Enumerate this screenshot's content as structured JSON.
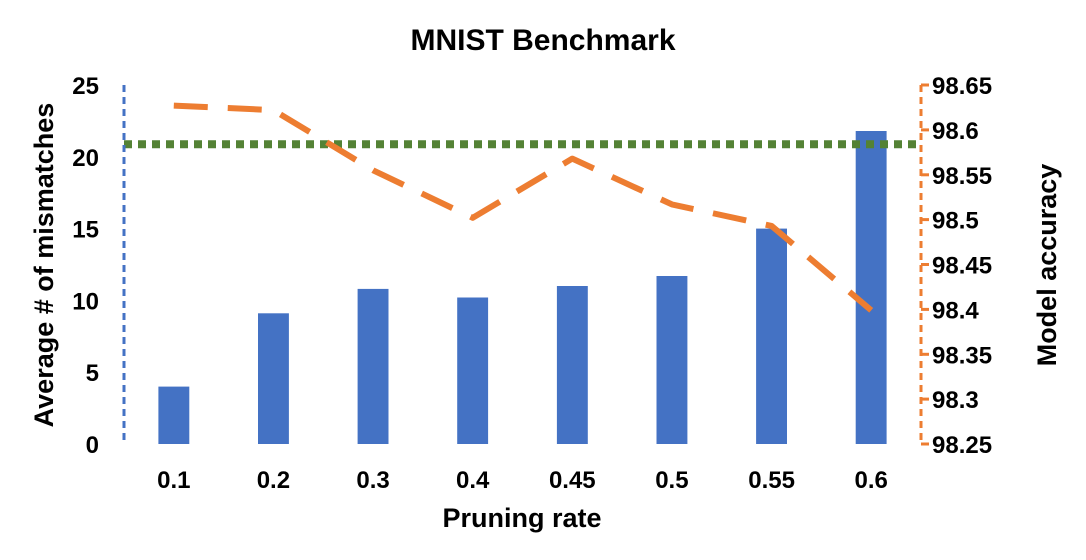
{
  "chart_data": {
    "type": "bar",
    "title": "MNIST Benchmark",
    "xlabel": "Pruning rate",
    "ylabel": "Average # of mismatches",
    "y2label": "Model accuracy",
    "categories": [
      "0.1",
      "0.2",
      "0.3",
      "0.4",
      "0.45",
      "0.5",
      "0.55",
      "0.6"
    ],
    "ylim": [
      0,
      25
    ],
    "yticks": [
      0,
      5,
      10,
      15,
      20,
      25
    ],
    "y2lim": [
      98.25,
      98.65
    ],
    "y2ticks": [
      "98.25",
      "98.3",
      "98.35",
      "98.4",
      "98.45",
      "98.5",
      "98.55",
      "98.6",
      "98.65"
    ],
    "grid": false,
    "legend": "none",
    "series": [
      {
        "type": "bar",
        "axis": "left",
        "color": "#4472C4",
        "values": [
          4.0,
          9.1,
          10.8,
          10.2,
          11.0,
          11.7,
          15.0,
          21.8
        ]
      },
      {
        "type": "line",
        "axis": "right",
        "style": "dashed",
        "color": "#ED7D31",
        "values": [
          98.627,
          98.622,
          98.555,
          98.502,
          98.568,
          98.517,
          98.493,
          98.399
        ]
      },
      {
        "type": "reference-line",
        "axis": "right",
        "style": "dotted",
        "color": "#548235",
        "value": 98.584
      }
    ]
  }
}
